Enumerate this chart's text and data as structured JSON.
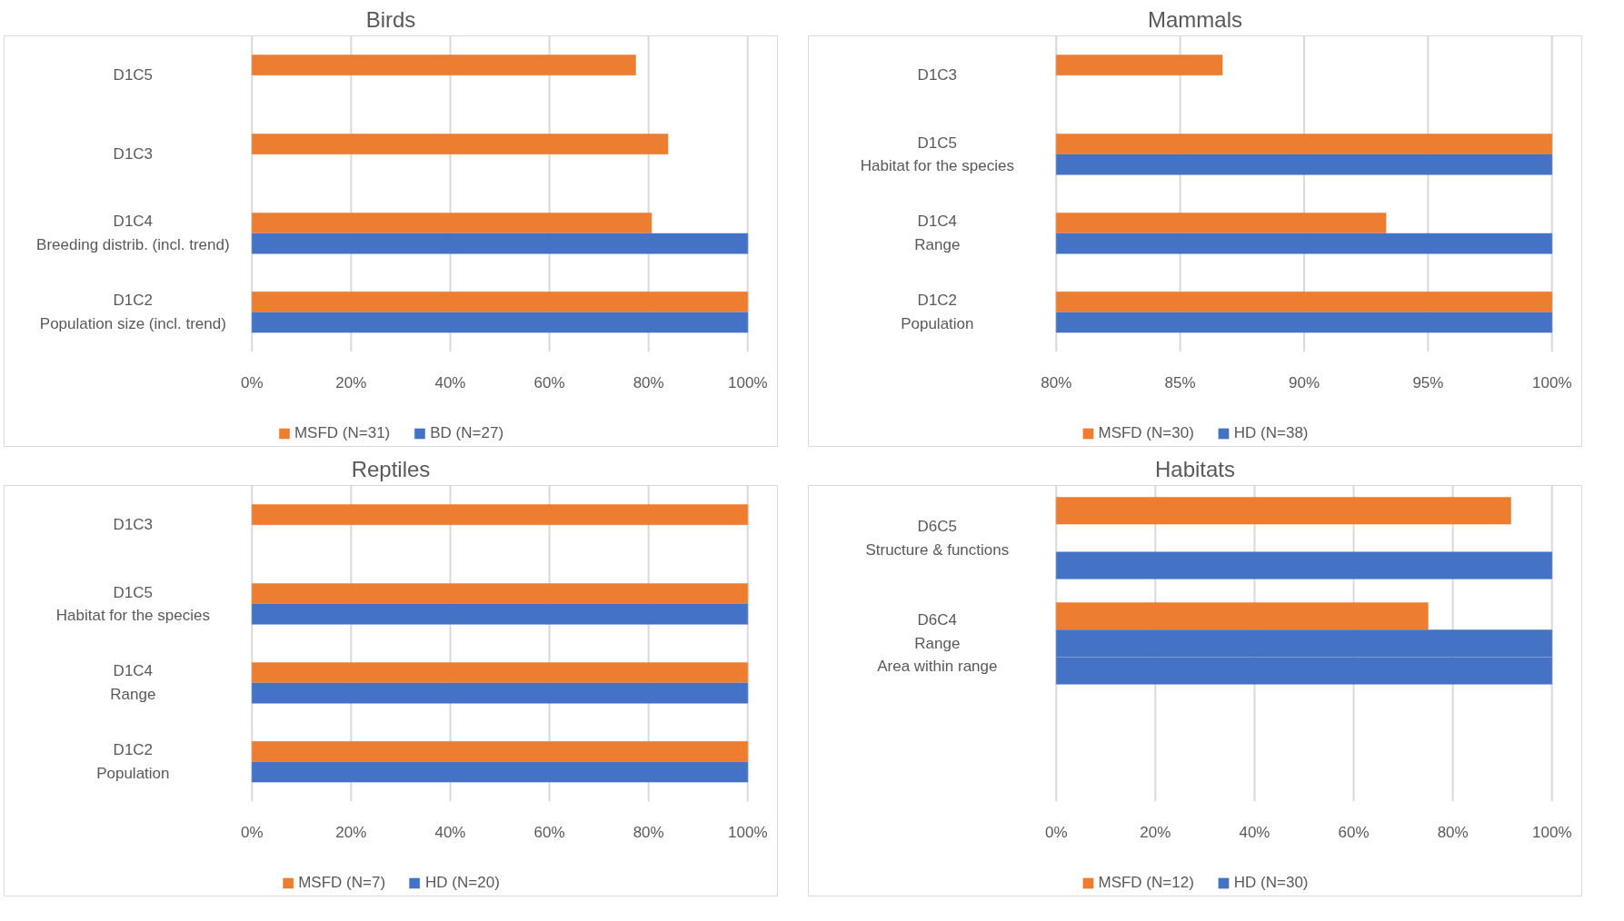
{
  "chart_data": [
    {
      "type": "bar",
      "orientation": "horizontal",
      "title": "Birds",
      "categories": [
        "D1C5",
        "D1C3",
        "D1C4\nBreeding distrib. (incl. trend)",
        "D1C2\nPopulation size (incl. trend)"
      ],
      "series": [
        {
          "name": "MSFD (N=31)",
          "color": "#ed7d31",
          "values": [
            77.4,
            83.9,
            80.6,
            100
          ]
        },
        {
          "name": "BD (N=27)",
          "color": "#4472c4",
          "values": [
            null,
            null,
            100,
            100
          ]
        }
      ],
      "xlim": [
        0,
        100
      ],
      "xticks": [
        {
          "value": 0,
          "label": "0%"
        },
        {
          "value": 20,
          "label": "20%"
        },
        {
          "value": 40,
          "label": "40%"
        },
        {
          "value": 60,
          "label": "60%"
        },
        {
          "value": 80,
          "label": "80%"
        },
        {
          "value": 100,
          "label": "100%"
        }
      ],
      "grid": "x",
      "legend": "bottom"
    },
    {
      "type": "bar",
      "orientation": "horizontal",
      "title": "Mammals",
      "categories": [
        "D1C3",
        "D1C5\nHabitat for the species",
        "D1C4\nRange",
        "D1C2\nPopulation"
      ],
      "series": [
        {
          "name": "MSFD (N=30)",
          "color": "#ed7d31",
          "values": [
            86.7,
            100,
            93.3,
            100
          ]
        },
        {
          "name": "HD (N=38)",
          "color": "#4472c4",
          "values": [
            null,
            100,
            100,
            100
          ]
        }
      ],
      "xlim": [
        80,
        100
      ],
      "xticks": [
        {
          "value": 80,
          "label": "80%"
        },
        {
          "value": 85,
          "label": "85%"
        },
        {
          "value": 90,
          "label": "90%"
        },
        {
          "value": 95,
          "label": "95%"
        },
        {
          "value": 100,
          "label": "100%"
        }
      ],
      "grid": "x",
      "legend": "bottom"
    },
    {
      "type": "bar",
      "orientation": "horizontal",
      "title": "Reptiles",
      "categories": [
        "D1C3",
        "D1C5\nHabitat for the species",
        "D1C4\nRange",
        "D1C2\nPopulation"
      ],
      "series": [
        {
          "name": "MSFD (N=7)",
          "color": "#ed7d31",
          "values": [
            100,
            100,
            100,
            100
          ]
        },
        {
          "name": "HD (N=20)",
          "color": "#4472c4",
          "values": [
            null,
            100,
            100,
            100
          ]
        }
      ],
      "xlim": [
        0,
        100
      ],
      "xticks": [
        {
          "value": 0,
          "label": "0%"
        },
        {
          "value": 20,
          "label": "20%"
        },
        {
          "value": 40,
          "label": "40%"
        },
        {
          "value": 60,
          "label": "60%"
        },
        {
          "value": 80,
          "label": "80%"
        },
        {
          "value": 100,
          "label": "100%"
        }
      ],
      "grid": "x",
      "legend": "bottom"
    },
    {
      "type": "bar",
      "orientation": "horizontal",
      "title": "Habitats",
      "categories": [
        "D6C5\nStructure & functions",
        "D6C4\nRange\nArea within range",
        null
      ],
      "series": [
        {
          "name": "MSFD (N=12)",
          "color": "#ed7d31",
          "values": [
            91.7,
            75,
            null
          ]
        },
        {
          "name": "HD (N=30)",
          "color": "#4472c4",
          "values": [
            null,
            100,
            null
          ]
        },
        {
          "color": "#4472c4",
          "values": [
            100,
            100,
            null
          ]
        }
      ],
      "xlim": [
        0,
        100
      ],
      "xticks": [
        {
          "value": 0,
          "label": "0%"
        },
        {
          "value": 20,
          "label": "20%"
        },
        {
          "value": 40,
          "label": "40%"
        },
        {
          "value": 60,
          "label": "60%"
        },
        {
          "value": 80,
          "label": "80%"
        },
        {
          "value": 100,
          "label": "100%"
        }
      ],
      "grid": "x",
      "legend": "bottom"
    }
  ]
}
